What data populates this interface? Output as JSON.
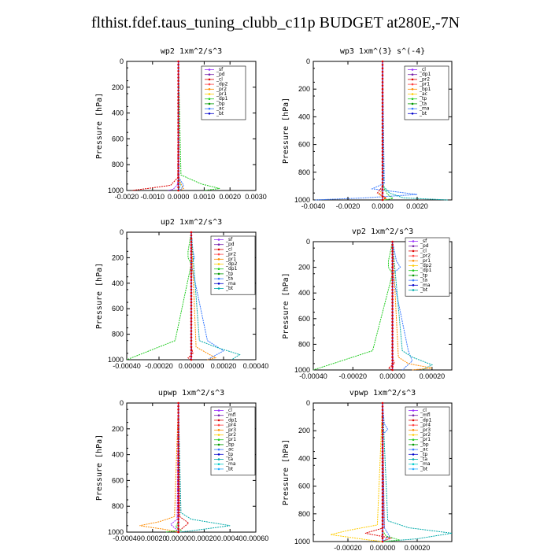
{
  "title": "flthist.fdef.taus_tuning_clubb_c11p  BUDGET at280E,-7N",
  "chart_data": [
    {
      "type": "line",
      "title": "wp2   1xm^2/s^3",
      "ylabel": "Pressure  [hPa]",
      "ylim": [
        1000,
        0
      ],
      "xlim": [
        -0.002,
        0.003
      ],
      "xticks": [
        "-0.0020",
        "-0.0010",
        "0.0000",
        "0.0010",
        "0.0020",
        "0.0030"
      ],
      "xtickvals": [
        -0.002,
        -0.001,
        0,
        0.001,
        0.002,
        0.003
      ],
      "yticks": [
        "0",
        "200",
        "400",
        "600",
        "800",
        "1000"
      ],
      "legend": [
        "_sf",
        "_pd",
        "_cl",
        "_dp2",
        "_pr2",
        "_pr1",
        "_dp1",
        "_bp",
        "_ac",
        "_bt"
      ],
      "series": [
        {
          "name": "_pd",
          "color": "#9b30ff",
          "x": [
            0,
            1e-05,
            -5e-05,
            -0.0002,
            -0.0004
          ],
          "y": [
            0,
            900,
            960,
            990,
            1000
          ]
        },
        {
          "name": "_dp1",
          "color": "#dd0000",
          "x": [
            0,
            -2e-05,
            -0.0003,
            -0.0012,
            -0.0018
          ],
          "y": [
            0,
            900,
            960,
            985,
            1000
          ]
        },
        {
          "name": "_pr2",
          "color": "#ff8c00",
          "x": [
            0,
            1e-05,
            0.0001,
            0.0002,
            5e-05
          ],
          "y": [
            0,
            900,
            950,
            985,
            1000
          ]
        },
        {
          "name": "_pr1",
          "color": "#22cc22",
          "x": [
            0,
            0.0001,
            0.0009,
            0.0016,
            0.001
          ],
          "y": [
            0,
            880,
            950,
            985,
            1000
          ]
        },
        {
          "name": "_ac",
          "color": "#3377ff",
          "x": [
            0,
            2e-05,
            0.0002,
            0.0001,
            5e-05
          ],
          "y": [
            0,
            900,
            960,
            990,
            1000
          ]
        },
        {
          "name": "_bt",
          "color": "#00cccc",
          "x": [
            0,
            1e-05,
            8e-05,
            3e-05,
            0
          ],
          "y": [
            0,
            900,
            960,
            990,
            1000
          ]
        }
      ]
    },
    {
      "type": "line",
      "title": "wp3   1xm^(3} s^(-4}",
      "ylabel": "Pressure  [hPa]",
      "ylim": [
        1000,
        0
      ],
      "xlim": [
        -0.004,
        0.004
      ],
      "xticks": [
        "-0.0040",
        "-0.0020",
        "0.0000",
        "0.0020"
      ],
      "xtickvals": [
        -0.004,
        -0.002,
        0,
        0.002
      ],
      "yticks": [
        "0",
        "200",
        "400",
        "600",
        "800",
        "1000"
      ],
      "legend": [
        "_cl",
        "_dp1",
        "_pr2",
        "_pr1",
        "_bp1",
        "_ac",
        "_tp",
        "_ta",
        "_ma",
        "_bt"
      ],
      "series": [
        {
          "name": "_tp",
          "color": "#3377ff",
          "x": [
            0,
            0.0001,
            -0.0006,
            0.002,
            -0.001,
            -0.0039
          ],
          "y": [
            0,
            880,
            920,
            960,
            985,
            1000
          ]
        },
        {
          "name": "_ta",
          "color": "#00aaaa",
          "x": [
            0,
            5e-05,
            0.0004,
            0.0012,
            0.0038
          ],
          "y": [
            0,
            900,
            950,
            985,
            1000
          ]
        },
        {
          "name": "_dp1",
          "color": "#dd0000",
          "x": [
            0,
            2e-05,
            -0.0003,
            0.0002,
            0
          ],
          "y": [
            0,
            900,
            950,
            985,
            1000
          ]
        },
        {
          "name": "_pr1",
          "color": "#22cc22",
          "x": [
            0,
            1e-05,
            0.0003,
            0.0006,
            0.0001
          ],
          "y": [
            0,
            900,
            960,
            990,
            1000
          ]
        },
        {
          "name": "_bp1",
          "color": "#ff8c00",
          "x": [
            0,
            1e-05,
            -0.0002,
            0.0002,
            0
          ],
          "y": [
            0,
            920,
            960,
            990,
            1000
          ]
        }
      ]
    },
    {
      "type": "line",
      "title": "up2   1xm^2/s^3",
      "ylabel": "Pressure  [hPa]",
      "ylim": [
        1000,
        0
      ],
      "xlim": [
        -0.0004,
        0.0004
      ],
      "xticks": [
        "-0.00040",
        "-0.00020",
        "0.00000",
        "0.00020",
        "0.00040"
      ],
      "xtickvals": [
        -0.0004,
        -0.0002,
        0,
        0.0002,
        0.0004
      ],
      "yticks": [
        "0",
        "200",
        "400",
        "600",
        "800",
        "1000"
      ],
      "legend": [
        "_sf",
        "_pd",
        "_cl",
        "_pr2",
        "_pr1",
        "_dp2",
        "_dp1",
        "_tp",
        "_ta",
        "_ma",
        "_bt"
      ],
      "series": [
        {
          "name": "_pr1",
          "color": "#22cc22",
          "x": [
            0,
            -2e-05,
            -2e-05,
            0,
            -0.0001,
            -0.0003,
            -0.0004
          ],
          "y": [
            0,
            150,
            200,
            250,
            850,
            950,
            1000
          ]
        },
        {
          "name": "_tp",
          "color": "#3377ff",
          "x": [
            0,
            1e-05,
            2e-05,
            0,
            0.0001,
            0.0002,
            0.0001
          ],
          "y": [
            0,
            150,
            200,
            250,
            850,
            930,
            1000
          ]
        },
        {
          "name": "_ta",
          "color": "#00aaaa",
          "x": [
            0,
            5e-05,
            0.00015,
            0.0003,
            0.00025
          ],
          "y": [
            0,
            850,
            900,
            960,
            1000
          ]
        },
        {
          "name": "_pr2",
          "color": "#ff8c00",
          "x": [
            0,
            3e-05,
            0.0001,
            0.00015,
            0.0001
          ],
          "y": [
            0,
            900,
            950,
            985,
            1000
          ]
        },
        {
          "name": "_dp1",
          "color": "#dd0000",
          "x": [
            0,
            0,
            1e-05,
            -2e-05,
            0
          ],
          "y": [
            0,
            900,
            950,
            985,
            1000
          ]
        }
      ]
    },
    {
      "type": "line",
      "title": "vp2   1xm^2/s^3",
      "ylabel": "Pressure  [hPa]",
      "ylim": [
        1000,
        0
      ],
      "xlim": [
        -0.0004,
        0.0003
      ],
      "xticks": [
        "-0.00040",
        "-0.00020",
        "0.00000",
        "0.00020"
      ],
      "xtickvals": [
        -0.0004,
        -0.0002,
        0,
        0.0002
      ],
      "yticks": [
        "0",
        "200",
        "400",
        "600",
        "800",
        "1000"
      ],
      "legend": [
        "_sf",
        "_pd",
        "_cl",
        "_pr2",
        "_pr1",
        "_dp2",
        "_dp1",
        "_tp",
        "_ta",
        "_ma",
        "_bt"
      ],
      "series": [
        {
          "name": "_pr1",
          "color": "#22cc22",
          "x": [
            0,
            -2e-05,
            -2e-05,
            0,
            -0.0001,
            -0.0003,
            -0.0004
          ],
          "y": [
            0,
            150,
            200,
            250,
            850,
            950,
            1000
          ]
        },
        {
          "name": "_tp",
          "color": "#3377ff",
          "x": [
            0,
            2e-05,
            4e-05,
            0,
            8e-05,
            0.0001,
            5e-05
          ],
          "y": [
            0,
            150,
            200,
            250,
            850,
            930,
            1000
          ]
        },
        {
          "name": "_ta",
          "color": "#00aaaa",
          "x": [
            0,
            5e-05,
            0.0001,
            0.0002,
            0.00015
          ],
          "y": [
            0,
            850,
            900,
            960,
            1000
          ]
        },
        {
          "name": "_pr2",
          "color": "#ff8c00",
          "x": [
            0,
            3e-05,
            8e-05,
            0.0002,
            0.0001
          ],
          "y": [
            0,
            900,
            950,
            985,
            1000
          ]
        },
        {
          "name": "_dp1",
          "color": "#dd0000",
          "x": [
            0,
            0,
            1e-05,
            -2e-05,
            0
          ],
          "y": [
            0,
            900,
            950,
            985,
            1000
          ]
        }
      ]
    },
    {
      "type": "line",
      "title": "upwp   1xm^2/s^3",
      "ylabel": "Pressure  [hPa]",
      "ylim": [
        1000,
        0
      ],
      "xlim": [
        -0.0004,
        0.0006
      ],
      "xticks": [
        "-0.00040",
        "-0.00020",
        "0.00000",
        "0.00020",
        "0.00040",
        "0.00060"
      ],
      "xtickvals": [
        -0.0004,
        -0.0002,
        0,
        0.0002,
        0.0004,
        0.0006
      ],
      "yticks": [
        "0",
        "200",
        "400",
        "600",
        "800",
        "1000"
      ],
      "legend": [
        "_cl",
        "_mfl",
        "_dp1",
        "_pr4",
        "_pr3",
        "_pr2",
        "_pr1",
        "_bp",
        "_ac",
        "_tp",
        "_ta",
        "_ma",
        "_bt"
      ],
      "series": [
        {
          "name": "_ta",
          "color": "#00aaaa",
          "x": [
            0,
            2e-05,
            0.0001,
            0.0004,
            0.0001,
            0
          ],
          "y": [
            0,
            850,
            900,
            950,
            990,
            1000
          ]
        },
        {
          "name": "_pr1",
          "color": "#ff8c00",
          "x": [
            0,
            -3e-05,
            -0.00015,
            -0.0003,
            -0.0001,
            0
          ],
          "y": [
            0,
            880,
            920,
            950,
            980,
            1000
          ]
        },
        {
          "name": "_dp1",
          "color": "#dd0000",
          "x": [
            0,
            1e-05,
            8e-05,
            3e-05,
            0
          ],
          "y": [
            0,
            880,
            930,
            970,
            1000
          ]
        },
        {
          "name": "_pr2",
          "color": "#9b30ff",
          "x": [
            0,
            -1e-05,
            -6e-05,
            -2e-05,
            0
          ],
          "y": [
            0,
            900,
            940,
            975,
            1000
          ]
        },
        {
          "name": "_bp",
          "color": "#22cc22",
          "x": [
            0,
            0,
            -2e-05,
            2e-05,
            -0.0001
          ],
          "y": [
            0,
            920,
            960,
            985,
            1000
          ]
        }
      ]
    },
    {
      "type": "line",
      "title": "vpwp   1xm^2/s^3",
      "ylabel": "Pressure  [hPa]",
      "ylim": [
        1000,
        0
      ],
      "xlim": [
        -0.0004,
        0.0004
      ],
      "xticks": [
        "-0.00020",
        "0.00000",
        "0.00020"
      ],
      "xtickvals": [
        -0.0002,
        0,
        0.0002
      ],
      "yticks": [
        "0",
        "200",
        "400",
        "600",
        "800",
        "1000"
      ],
      "legend": [
        "_cl",
        "_mfl",
        "_dp1",
        "_pr4",
        "_pr3",
        "_pr2",
        "_pr1",
        "_bp",
        "_ac",
        "_tp",
        "_ta",
        "_ma",
        "_bt"
      ],
      "series": [
        {
          "name": "_ta",
          "color": "#00aaaa",
          "x": [
            0,
            3e-05,
            0.00015,
            0.0004,
            0.0002,
            0
          ],
          "y": [
            0,
            850,
            900,
            940,
            980,
            1000
          ]
        },
        {
          "name": "_pr1",
          "color": "#ffcc00",
          "x": [
            0,
            -3e-05,
            -0.0002,
            -0.0003,
            -0.0001,
            0
          ],
          "y": [
            0,
            880,
            920,
            950,
            985,
            1000
          ]
        },
        {
          "name": "_dp1",
          "color": "#dd0000",
          "x": [
            0,
            1e-05,
            -0.0001,
            5e-05,
            0
          ],
          "y": [
            0,
            900,
            940,
            975,
            1000
          ]
        },
        {
          "name": "_tp",
          "color": "#3377ff",
          "x": [
            0,
            1e-05,
            3e-05,
            0,
            1e-05,
            4e-05,
            0
          ],
          "y": [
            0,
            150,
            190,
            230,
            900,
            960,
            1000
          ]
        },
        {
          "name": "_bp",
          "color": "#22cc22",
          "x": [
            0,
            0,
            2e-05,
            0.0001,
            0
          ],
          "y": [
            0,
            920,
            960,
            990,
            1000
          ]
        }
      ]
    }
  ]
}
